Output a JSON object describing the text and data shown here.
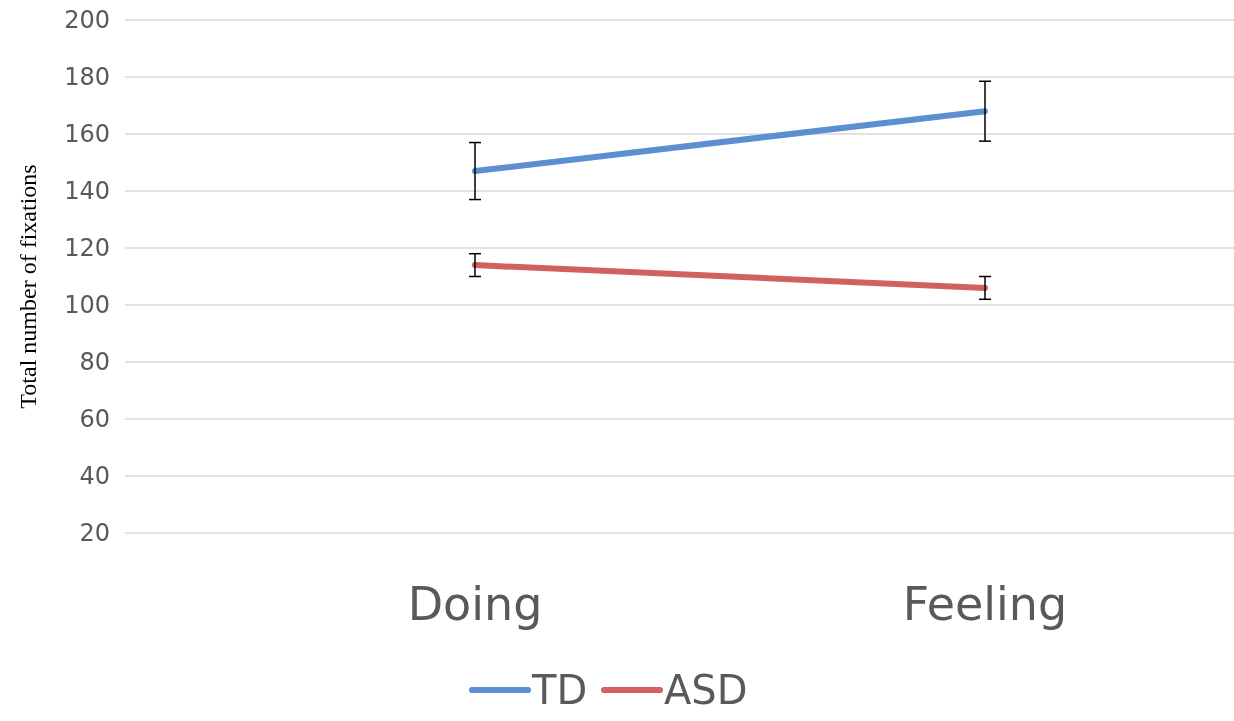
{
  "chart_data": {
    "type": "line",
    "ylabel": "Total number of fixations",
    "categories": [
      "Doing",
      "Feeling"
    ],
    "series": [
      {
        "name": "TD",
        "color": "#5b8fd0",
        "values": [
          147,
          168
        ],
        "errors": [
          10,
          10.5
        ]
      },
      {
        "name": "ASD",
        "color": "#d0615f",
        "values": [
          114,
          106
        ],
        "errors": [
          4,
          4
        ]
      }
    ],
    "ylim": [
      20,
      200
    ],
    "yticks": [
      20,
      40,
      60,
      80,
      100,
      120,
      140,
      160,
      180,
      200
    ],
    "grid": "y",
    "legend": "bottom",
    "marker": "none",
    "line_style": "solid"
  }
}
